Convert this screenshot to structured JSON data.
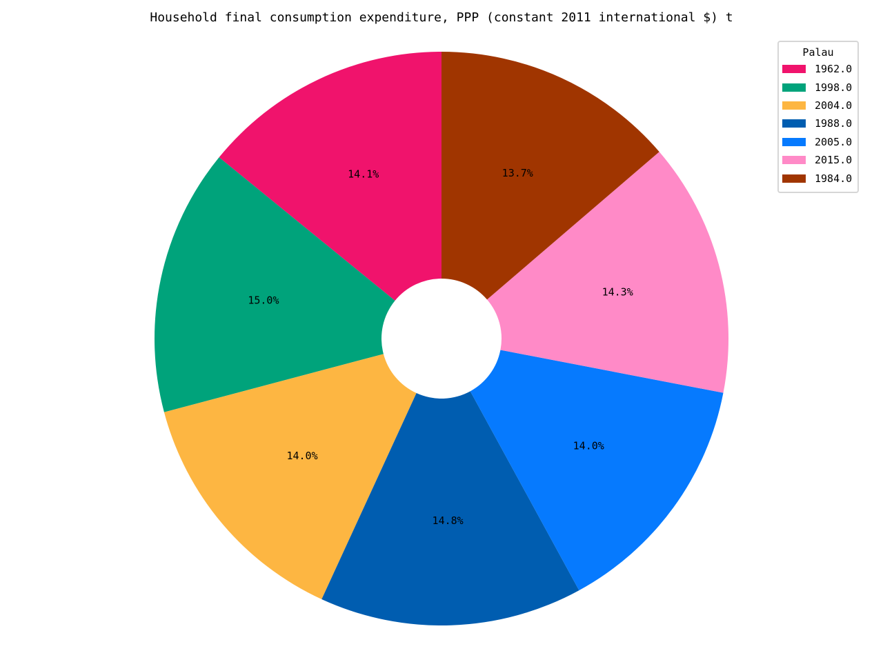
{
  "chart_data": {
    "type": "pie",
    "title": "Household final consumption expenditure, PPP (constant 2011 international $) t",
    "legend_title": "Palau",
    "legend_position": "top-right",
    "donut": true,
    "start_angle_deg": 90,
    "direction": "counterclockwise",
    "slices": [
      {
        "label": "1962.0",
        "percent": 14.1,
        "pct_text": "14.1%",
        "color": "#f0136c"
      },
      {
        "label": "1998.0",
        "percent": 15.0,
        "pct_text": "15.0%",
        "color": "#00a37b"
      },
      {
        "label": "2004.0",
        "percent": 14.0,
        "pct_text": "14.0%",
        "color": "#fdb642"
      },
      {
        "label": "1988.0",
        "percent": 14.8,
        "pct_text": "14.8%",
        "color": "#005db0"
      },
      {
        "label": "2005.0",
        "percent": 14.0,
        "pct_text": "14.0%",
        "color": "#067afe"
      },
      {
        "label": "2015.0",
        "percent": 14.3,
        "pct_text": "14.3%",
        "color": "#ff8ac7"
      },
      {
        "label": "1984.0",
        "percent": 13.7,
        "pct_text": "13.7%",
        "color": "#a03500"
      }
    ]
  }
}
